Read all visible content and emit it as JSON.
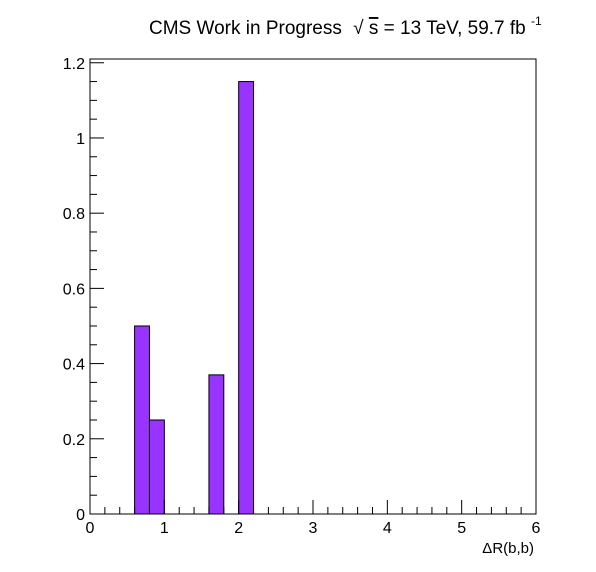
{
  "chart_data": {
    "type": "bar",
    "title": {
      "prefix": "CMS Work in Progress",
      "sqrt_symbol": "√",
      "sqrt_var": "s",
      "energy": " = 13 TeV, 59.7 fb",
      "exponent": "-1"
    },
    "xlabel": "ΔR(b,b)",
    "ylabel": "",
    "xlim": [
      0,
      6
    ],
    "ylim": [
      0,
      1.21
    ],
    "x_ticks": [
      0,
      1,
      2,
      3,
      4,
      5,
      6
    ],
    "x_tick_labels": [
      "0",
      "1",
      "2",
      "3",
      "4",
      "5",
      "6"
    ],
    "y_ticks": [
      0,
      0.2,
      0.4,
      0.6,
      0.8,
      1.0,
      1.2
    ],
    "y_tick_labels": [
      "0",
      "0.2",
      "0.4",
      "0.6",
      "0.8",
      "1",
      "1.2"
    ],
    "bin_width": 0.2,
    "bins": [
      {
        "x_low": 0.6,
        "value": 0.5
      },
      {
        "x_low": 0.8,
        "value": 0.25
      },
      {
        "x_low": 1.6,
        "value": 0.37
      },
      {
        "x_low": 2.0,
        "value": 1.15
      }
    ],
    "fill_color": "#9933ff",
    "grid": false,
    "legend": "none"
  }
}
